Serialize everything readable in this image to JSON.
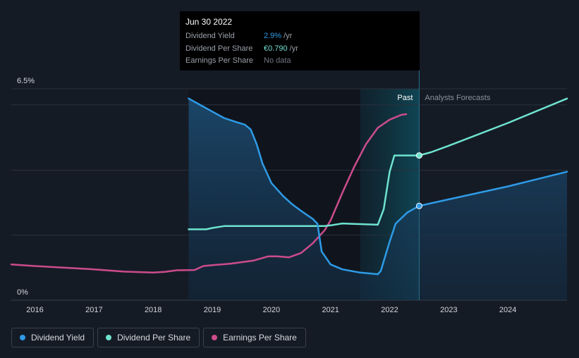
{
  "tooltip": {
    "date": "Jun 30 2022",
    "rows": [
      {
        "label": "Dividend Yield",
        "value": "2.9%",
        "unit": "/yr",
        "color": "#2e9be6"
      },
      {
        "label": "Dividend Per Share",
        "value": "€0.790",
        "unit": "/yr",
        "color": "#6ee3d0"
      },
      {
        "label": "Earnings Per Share",
        "value": "No data",
        "unit": "",
        "color": "#6f7680"
      }
    ]
  },
  "legend": [
    {
      "label": "Dividend Yield",
      "color": "#2e9be6"
    },
    {
      "label": "Dividend Per Share",
      "color": "#6ee3d0"
    },
    {
      "label": "Earnings Per Share",
      "color": "#cc4c8c"
    }
  ],
  "chart_data": {
    "type": "line",
    "y_top_label": "6.5%",
    "y_bottom_label": "0%",
    "ylim": [
      0,
      6.5
    ],
    "xlim": [
      2015.6,
      2025.0
    ],
    "x_ticks": [
      2016,
      2017,
      2018,
      2019,
      2020,
      2021,
      2022,
      2023,
      2024
    ],
    "past_label": "Past",
    "forecast_label": "Analysts Forecasts",
    "forecast_start": 2022.5,
    "past_band_start": 2021.5,
    "dividend_period_start": 2018.6,
    "grid": true,
    "series": [
      {
        "name": "Dividend Yield",
        "color": "#2e9be6",
        "fill": true,
        "points": [
          [
            2018.6,
            6.2
          ],
          [
            2018.8,
            6.0
          ],
          [
            2019.0,
            5.8
          ],
          [
            2019.2,
            5.6
          ],
          [
            2019.4,
            5.48
          ],
          [
            2019.55,
            5.4
          ],
          [
            2019.65,
            5.25
          ],
          [
            2019.75,
            4.8
          ],
          [
            2019.85,
            4.2
          ],
          [
            2020.0,
            3.6
          ],
          [
            2020.2,
            3.2
          ],
          [
            2020.35,
            2.95
          ],
          [
            2020.5,
            2.75
          ],
          [
            2020.7,
            2.5
          ],
          [
            2020.78,
            2.35
          ],
          [
            2020.85,
            1.5
          ],
          [
            2021.0,
            1.1
          ],
          [
            2021.2,
            0.95
          ],
          [
            2021.5,
            0.85
          ],
          [
            2021.8,
            0.8
          ],
          [
            2021.85,
            0.9
          ],
          [
            2022.0,
            1.8
          ],
          [
            2022.1,
            2.35
          ],
          [
            2022.3,
            2.7
          ],
          [
            2022.5,
            2.9
          ],
          [
            2022.75,
            3.0
          ],
          [
            2023.0,
            3.1
          ],
          [
            2024.0,
            3.5
          ],
          [
            2025.0,
            3.95
          ]
        ]
      },
      {
        "name": "Dividend Per Share",
        "color": "#6ee3d0",
        "points": [
          [
            2018.6,
            2.18
          ],
          [
            2018.9,
            2.18
          ],
          [
            2019.0,
            2.22
          ],
          [
            2019.2,
            2.28
          ],
          [
            2019.5,
            2.28
          ],
          [
            2020.0,
            2.28
          ],
          [
            2020.5,
            2.28
          ],
          [
            2020.9,
            2.28
          ],
          [
            2021.0,
            2.3
          ],
          [
            2021.2,
            2.36
          ],
          [
            2021.5,
            2.34
          ],
          [
            2021.8,
            2.32
          ],
          [
            2021.9,
            2.8
          ],
          [
            2022.0,
            3.95
          ],
          [
            2022.08,
            4.45
          ],
          [
            2022.5,
            4.45
          ],
          [
            2022.7,
            4.55
          ],
          [
            2023.0,
            4.75
          ],
          [
            2024.0,
            5.45
          ],
          [
            2025.0,
            6.2
          ]
        ]
      },
      {
        "name": "Earnings Per Share",
        "color": "#cc4c8c",
        "points": [
          [
            2015.6,
            1.1
          ],
          [
            2016.0,
            1.05
          ],
          [
            2017.0,
            0.95
          ],
          [
            2017.5,
            0.88
          ],
          [
            2018.0,
            0.85
          ],
          [
            2018.2,
            0.87
          ],
          [
            2018.4,
            0.92
          ],
          [
            2018.7,
            0.93
          ],
          [
            2018.85,
            1.05
          ],
          [
            2019.0,
            1.08
          ],
          [
            2019.3,
            1.12
          ],
          [
            2019.7,
            1.22
          ],
          [
            2019.95,
            1.35
          ],
          [
            2020.1,
            1.35
          ],
          [
            2020.3,
            1.32
          ],
          [
            2020.5,
            1.45
          ],
          [
            2020.7,
            1.75
          ],
          [
            2020.9,
            2.15
          ],
          [
            2021.0,
            2.45
          ],
          [
            2021.2,
            3.3
          ],
          [
            2021.4,
            4.1
          ],
          [
            2021.6,
            4.8
          ],
          [
            2021.8,
            5.3
          ],
          [
            2022.0,
            5.55
          ],
          [
            2022.2,
            5.7
          ],
          [
            2022.28,
            5.72
          ]
        ]
      }
    ],
    "markers": [
      {
        "series": "Dividend Yield",
        "x": 2022.5,
        "y": 2.9
      },
      {
        "series": "Dividend Per Share",
        "x": 2022.5,
        "y": 4.45
      }
    ]
  }
}
